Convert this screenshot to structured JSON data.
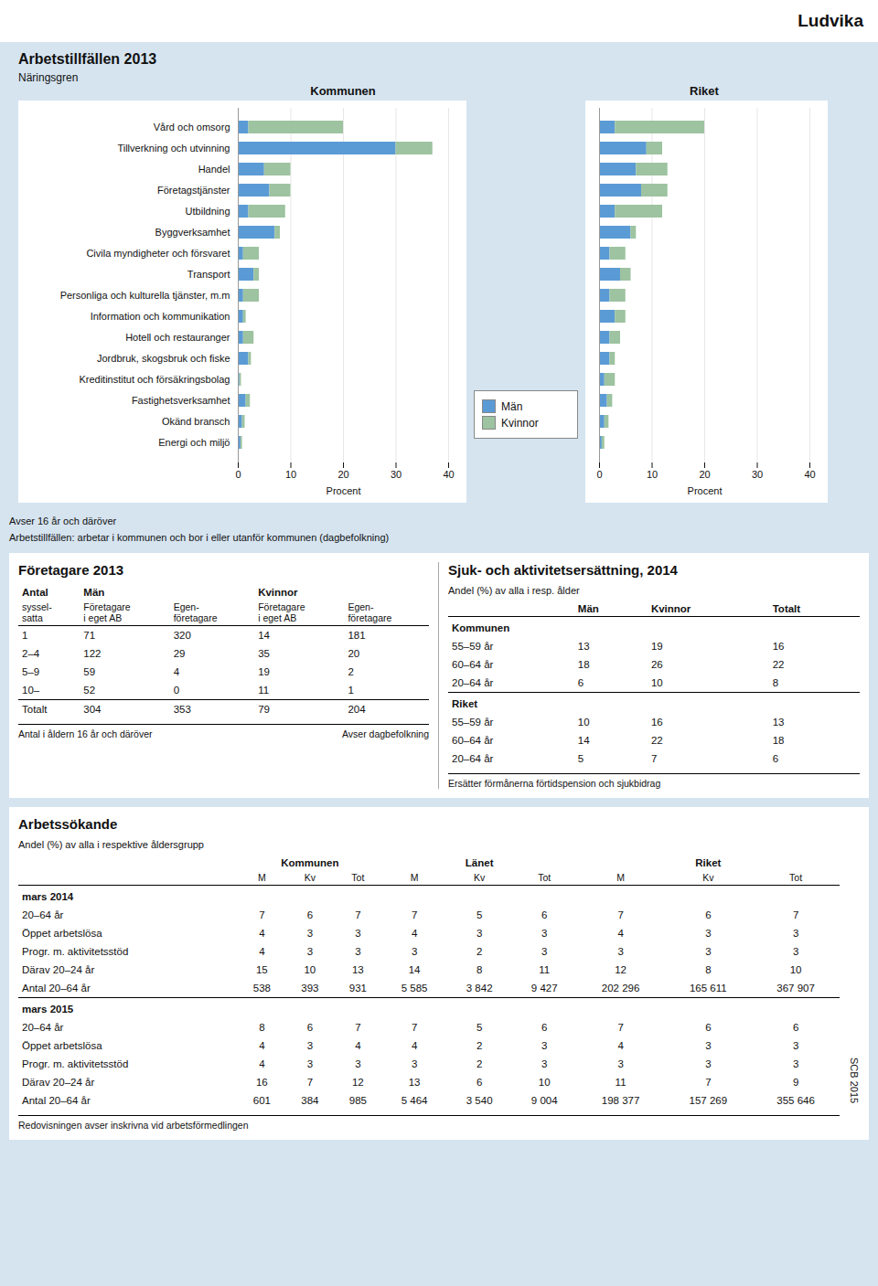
{
  "title": "Ludvika",
  "source": "SCB 2015",
  "chart_data": [
    {
      "type": "bar",
      "orientation": "horizontal",
      "stacked": true,
      "section_title": "Arbetstillfällen 2013",
      "y_label": "Näringsgren",
      "title": "Kommunen",
      "x_label": "Procent",
      "categories": [
        "Vård och omsorg",
        "Tillverkning och utvinning",
        "Handel",
        "Företagstjänster",
        "Utbildning",
        "Byggverksamhet",
        "Civila myndigheter och försvaret",
        "Transport",
        "Personliga och kulturella tjänster, m.m",
        "Information och kommunikation",
        "Hotell och restauranger",
        "Jordbruk, skogsbruk och fiske",
        "Kreditinstitut och försäkringsbolag",
        "Fastighetsverksamhet",
        "Okänd bransch",
        "Energi och miljö"
      ],
      "series": [
        {
          "name": "Män",
          "color": "#5B9BD5",
          "values": [
            2,
            30,
            5,
            6,
            2,
            7,
            1,
            3,
            1,
            1,
            1,
            2,
            0.3,
            1.5,
            0.8,
            0.5
          ]
        },
        {
          "name": "Kvinnor",
          "color": "#9DC3A0",
          "values": [
            18,
            7,
            5,
            4,
            7,
            1,
            3,
            1,
            3,
            0.5,
            2,
            0.5,
            0.3,
            0.8,
            0.5,
            0.3
          ]
        }
      ],
      "xlim": [
        0,
        40
      ],
      "xticks": [
        0,
        10,
        20,
        30,
        40
      ],
      "grid": true,
      "legend": "right",
      "notes": [
        "Avser 16 år och däröver",
        "Arbetstillfällen: arbetar i kommunen och bor i eller utanför kommunen (dagbefolkning)"
      ]
    },
    {
      "type": "bar",
      "orientation": "horizontal",
      "stacked": true,
      "title": "Riket",
      "x_label": "Procent",
      "tick_labels": "x",
      "categories": [
        "Vård och omsorg",
        "Tillverkning och utvinning",
        "Handel",
        "Företagstjänster",
        "Utbildning",
        "Byggverksamhet",
        "Civila myndigheter och försvaret",
        "Transport",
        "Personliga och kulturella tjänster, m.m",
        "Information och kommunikation",
        "Hotell och restauranger",
        "Jordbruk, skogsbruk och fiske",
        "Kreditinstitut och försäkringsbolag",
        "Fastighetsverksamhet",
        "Okänd bransch",
        "Energi och miljö"
      ],
      "series": [
        {
          "name": "Män",
          "color": "#5B9BD5",
          "values": [
            3,
            9,
            7,
            8,
            3,
            6,
            2,
            4,
            2,
            3,
            2,
            2,
            1,
            1.5,
            1,
            0.5
          ]
        },
        {
          "name": "Kvinnor",
          "color": "#9DC3A0",
          "values": [
            17,
            3,
            6,
            5,
            9,
            1,
            3,
            2,
            3,
            2,
            2,
            1,
            2,
            1,
            0.8,
            0.5
          ]
        }
      ],
      "xlim": [
        0,
        40
      ],
      "xticks": [
        0,
        10,
        20,
        30,
        40
      ],
      "grid": true
    },
    {
      "type": "table",
      "title": "Företagare 2013",
      "column_groups": [
        {
          "name": "Antal",
          "columns": [
            "syssel-\nsatta"
          ]
        },
        {
          "name": "Män",
          "columns": [
            "Företagare\ni eget AB",
            "Egen-\nföretagare"
          ]
        },
        {
          "name": "Kvinnor",
          "columns": [
            "Företagare\ni eget AB",
            "Egen-\nföretagare"
          ]
        }
      ],
      "rows": [
        [
          "1",
          "71",
          "320",
          "14",
          "181"
        ],
        [
          "2–4",
          "122",
          "29",
          "35",
          "20"
        ],
        [
          "5–9",
          "59",
          "4",
          "19",
          "2"
        ],
        [
          "10–",
          "52",
          "0",
          "11",
          "1"
        ],
        [
          "Totalt",
          "304",
          "353",
          "79",
          "204"
        ]
      ],
      "notes": [
        "Antal i åldern 16 år och däröver",
        "Avser dagbefolkning"
      ]
    },
    {
      "type": "table",
      "title": "Sjuk- och aktivitetsersättning,  2014",
      "subtitle": "Andel (%) av alla i resp. ålder",
      "columns": [
        "Män",
        "Kvinnor",
        "Totalt"
      ],
      "groups": [
        {
          "name": "Kommunen",
          "rows": [
            [
              "55–59 år",
              "13",
              "19",
              "16"
            ],
            [
              "60–64 år",
              "18",
              "26",
              "22"
            ],
            [
              "20–64 år",
              "6",
              "10",
              "8"
            ]
          ]
        },
        {
          "name": "Riket",
          "rows": [
            [
              "55–59 år",
              "10",
              "16",
              "13"
            ],
            [
              "60–64 år",
              "14",
              "22",
              "18"
            ],
            [
              "20–64 år",
              "5",
              "7",
              "6"
            ]
          ]
        }
      ],
      "notes": [
        "Ersätter förmånerna förtidspension och sjukbidrag"
      ]
    },
    {
      "type": "table",
      "title": "Arbetssökande",
      "subtitle": "Andel (%) av alla i respektive åldersgrupp",
      "column_groups": [
        {
          "name": "Kommunen",
          "columns": [
            "M",
            "Kv",
            "Tot"
          ]
        },
        {
          "name": "Länet",
          "columns": [
            "M",
            "Kv",
            "Tot"
          ]
        },
        {
          "name": "Riket",
          "columns": [
            "M",
            "Kv",
            "Tot"
          ]
        }
      ],
      "groups": [
        {
          "name": "mars 2014",
          "rows": [
            [
              "20–64 år",
              "7",
              "6",
              "7",
              "7",
              "5",
              "6",
              "7",
              "6",
              "7"
            ],
            [
              "Öppet arbetslösa",
              "4",
              "3",
              "3",
              "4",
              "3",
              "3",
              "4",
              "3",
              "3"
            ],
            [
              "Progr. m. aktivitetsstöd",
              "4",
              "3",
              "3",
              "3",
              "2",
              "3",
              "3",
              "3",
              "3"
            ],
            [
              "Därav 20–24 år",
              "15",
              "10",
              "13",
              "14",
              "8",
              "11",
              "12",
              "8",
              "10"
            ],
            [
              "Antal 20–64 år",
              "538",
              "393",
              "931",
              "5 585",
              "3 842",
              "9 427",
              "202 296",
              "165 611",
              "367 907"
            ]
          ]
        },
        {
          "name": "mars 2015",
          "rows": [
            [
              "20–64 år",
              "8",
              "6",
              "7",
              "7",
              "5",
              "6",
              "7",
              "6",
              "6"
            ],
            [
              "Öppet arbetslösa",
              "4",
              "3",
              "4",
              "4",
              "2",
              "3",
              "4",
              "3",
              "3"
            ],
            [
              "Progr. m. aktivitetsstöd",
              "4",
              "3",
              "3",
              "3",
              "2",
              "3",
              "3",
              "3",
              "3"
            ],
            [
              "Därav 20–24 år",
              "16",
              "7",
              "12",
              "13",
              "6",
              "10",
              "11",
              "7",
              "9"
            ],
            [
              "Antal 20–64 år",
              "601",
              "384",
              "985",
              "5 464",
              "3 540",
              "9 004",
              "198 377",
              "157 269",
              "355 646"
            ]
          ]
        }
      ],
      "notes": [
        "Redovisningen avser inskrivna vid arbetsförmedlingen"
      ]
    }
  ]
}
